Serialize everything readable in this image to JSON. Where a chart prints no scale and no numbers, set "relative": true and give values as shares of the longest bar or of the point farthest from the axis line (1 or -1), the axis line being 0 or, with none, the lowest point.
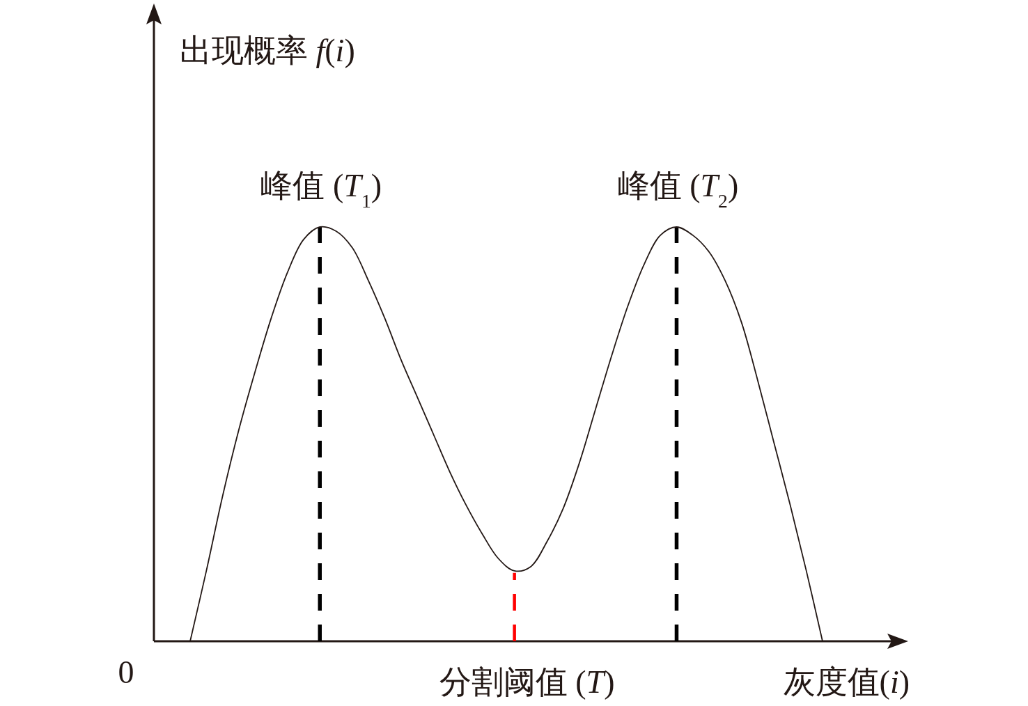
{
  "chart_data": {
    "type": "line",
    "xlabel": "灰度值(i)",
    "ylabel": "出现概率 f(i)",
    "categories": [
      null,
      null,
      null,
      null,
      null,
      null,
      null,
      null,
      null,
      null,
      null,
      null,
      null,
      null,
      null,
      null,
      null,
      null,
      null,
      null,
      null,
      null,
      null,
      null,
      null,
      null,
      null,
      null,
      null,
      null,
      null,
      null,
      null,
      null,
      null,
      null,
      null,
      null,
      null,
      null
    ],
    "values": [
      0,
      0.17,
      0.35,
      0.51,
      0.65,
      0.78,
      0.89,
      0.97,
      1,
      0.99,
      0.95,
      0.87,
      0.78,
      0.68,
      0.59,
      0.5,
      0.41,
      0.33,
      0.26,
      0.2,
      0.17,
      0.18,
      0.24,
      0.32,
      0.43,
      0.56,
      0.69,
      0.81,
      0.91,
      0.98,
      1,
      0.98,
      0.94,
      0.87,
      0.77,
      0.63,
      0.48,
      0.33,
      0.17,
      0
    ],
    "color": "#231815",
    "relative": true,
    "annotations": [
      "0",
      {
        "text": "峰值 (T$_{1}$)",
        "y": 1
      },
      {
        "text": "分割阈值 (T)",
        "y": 0.17
      },
      {
        "text": "峰值 (T$_{2}$)",
        "y": 1
      }
    ]
  }
}
